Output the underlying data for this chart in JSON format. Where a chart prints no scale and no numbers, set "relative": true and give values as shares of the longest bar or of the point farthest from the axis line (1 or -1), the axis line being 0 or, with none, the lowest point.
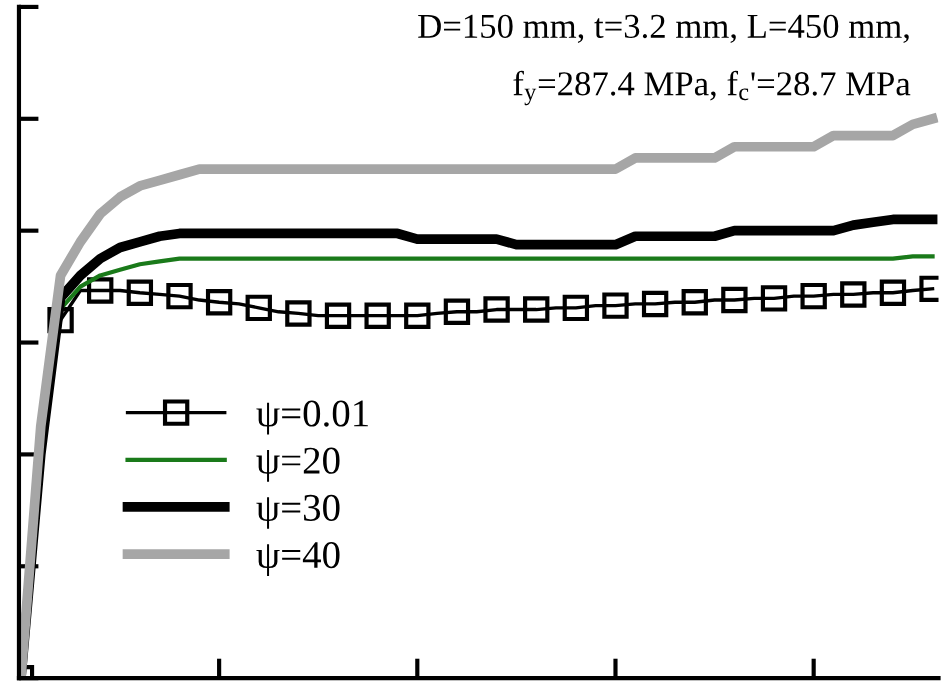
{
  "chart_data": {
    "type": "line",
    "relative": true,
    "categories": [
      null,
      null,
      null,
      null,
      null,
      null,
      null,
      null,
      null,
      null,
      null,
      null,
      null,
      null,
      null,
      null,
      null,
      null,
      null,
      null,
      null,
      null,
      null,
      null,
      null,
      null,
      null,
      null,
      null,
      null,
      null,
      null,
      null,
      null,
      null,
      null,
      null,
      null,
      null,
      null,
      null,
      null,
      null,
      null,
      null,
      null,
      null
    ],
    "annotations": [
      "D=150 mm, t=3.2 mm, L=450 mm,",
      "f$_{y}$=287.4 MPa, f$_{c}$'=28.7 MPa"
    ],
    "legend": "lower left",
    "series": [
      {
        "name": "ψ=0.01",
        "color": "#000000",
        "marker": "square",
        "values": [
          0,
          0.4,
          0.64,
          0.693,
          0.693,
          0.693,
          0.689,
          0.686,
          0.683,
          0.676,
          0.672,
          0.669,
          0.662,
          0.655,
          0.652,
          0.648,
          0.648,
          0.648,
          0.648,
          0.648,
          0.648,
          0.652,
          0.655,
          0.655,
          0.659,
          0.659,
          0.659,
          0.662,
          0.662,
          0.666,
          0.666,
          0.669,
          0.669,
          0.672,
          0.672,
          0.676,
          0.676,
          0.679,
          0.679,
          0.683,
          0.683,
          0.686,
          0.686,
          0.689,
          0.689,
          0.693,
          0.696
        ]
      },
      {
        "name": "ψ=20",
        "color": "#1a7a1a",
        "values": [
          0,
          0.4,
          0.66,
          0.7,
          0.72,
          0.73,
          0.74,
          0.745,
          0.75,
          0.75,
          0.75,
          0.75,
          0.75,
          0.75,
          0.75,
          0.75,
          0.75,
          0.75,
          0.75,
          0.75,
          0.75,
          0.75,
          0.75,
          0.75,
          0.75,
          0.75,
          0.75,
          0.75,
          0.75,
          0.75,
          0.75,
          0.75,
          0.75,
          0.75,
          0.75,
          0.75,
          0.75,
          0.75,
          0.75,
          0.75,
          0.75,
          0.75,
          0.75,
          0.75,
          0.75,
          0.754,
          0.754
        ]
      },
      {
        "name": "ψ=30",
        "color": "#000000",
        "values": [
          0,
          0.4,
          0.68,
          0.72,
          0.75,
          0.77,
          0.78,
          0.79,
          0.795,
          0.795,
          0.795,
          0.795,
          0.795,
          0.795,
          0.795,
          0.795,
          0.795,
          0.795,
          0.795,
          0.795,
          0.785,
          0.785,
          0.785,
          0.785,
          0.785,
          0.775,
          0.775,
          0.775,
          0.775,
          0.775,
          0.775,
          0.79,
          0.79,
          0.79,
          0.79,
          0.79,
          0.8,
          0.8,
          0.8,
          0.8,
          0.8,
          0.8,
          0.81,
          0.815,
          0.82,
          0.82,
          0.82
        ]
      },
      {
        "name": "ψ=40",
        "color": "#a6a6a6",
        "values": [
          0,
          0.45,
          0.72,
          0.78,
          0.83,
          0.86,
          0.88,
          0.89,
          0.9,
          0.91,
          0.91,
          0.91,
          0.91,
          0.91,
          0.91,
          0.91,
          0.91,
          0.91,
          0.91,
          0.91,
          0.91,
          0.91,
          0.91,
          0.91,
          0.91,
          0.91,
          0.91,
          0.91,
          0.91,
          0.91,
          0.91,
          0.93,
          0.93,
          0.93,
          0.93,
          0.93,
          0.95,
          0.95,
          0.95,
          0.95,
          0.95,
          0.97,
          0.97,
          0.97,
          0.97,
          0.99,
          1.0
        ]
      }
    ]
  }
}
